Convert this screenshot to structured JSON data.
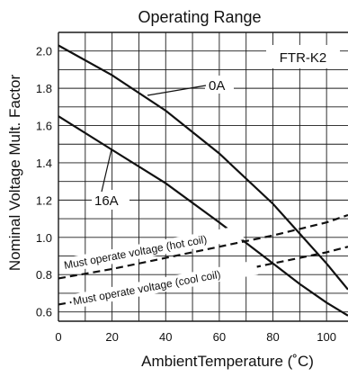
{
  "chart_data": {
    "type": "line",
    "title": "Operating Range",
    "xlabel": "AmbientTemperature (˚C)",
    "ylabel": "Nominal Voltage Mult. Factor",
    "xlim": [
      0,
      108
    ],
    "ylim": [
      0.55,
      2.1
    ],
    "x_ticks": [
      0,
      20,
      40,
      60,
      80,
      100
    ],
    "y_ticks": [
      0.6,
      0.8,
      1.0,
      1.2,
      1.4,
      1.6,
      1.8,
      2.0
    ],
    "y_tick_labels": [
      "0.6",
      "0.8",
      "1.0",
      "1.2",
      "1.4",
      "1.6",
      "1.8",
      "2.0"
    ],
    "grid": true,
    "model_label": "FTR-K2",
    "series": [
      {
        "name": "0A",
        "style": "solid",
        "x": [
          0,
          20,
          40,
          60,
          80,
          100,
          108
        ],
        "y": [
          2.03,
          1.87,
          1.68,
          1.45,
          1.18,
          0.86,
          0.72
        ]
      },
      {
        "name": "16A",
        "style": "solid",
        "x": [
          0,
          20,
          40,
          60,
          80,
          90,
          100,
          108
        ],
        "y": [
          1.65,
          1.47,
          1.29,
          1.08,
          0.86,
          0.75,
          0.65,
          0.58
        ]
      },
      {
        "name": "Must operate voltage (hot coil)",
        "style": "dashed",
        "x": [
          0,
          20,
          40,
          60,
          80,
          100,
          108
        ],
        "y": [
          0.78,
          0.83,
          0.89,
          0.95,
          1.01,
          1.08,
          1.12
        ]
      },
      {
        "name": "Must operate voltage (cool coil)",
        "style": "dashed",
        "x": [
          0,
          20,
          40,
          60,
          80,
          100,
          108
        ],
        "y": [
          0.64,
          0.69,
          0.74,
          0.8,
          0.86,
          0.92,
          0.95
        ]
      }
    ],
    "annotations": {
      "zeroA": "0A",
      "sixteenA": "16A",
      "hot_coil": "Must operate voltage (hot coil)",
      "cool_coil": "Must operate voltage (cool coil)"
    }
  }
}
